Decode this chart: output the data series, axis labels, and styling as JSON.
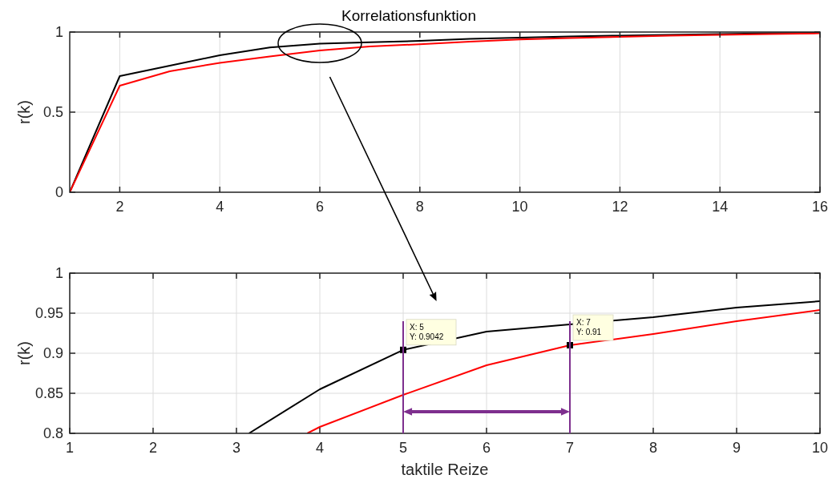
{
  "chart_data": [
    {
      "type": "line",
      "title": "Korrelationsfunktion",
      "ylabel": "r(k)",
      "x": [
        1,
        2,
        3,
        4,
        5,
        6,
        7,
        8,
        9,
        10,
        11,
        12,
        13,
        14,
        15,
        16
      ],
      "series": [
        {
          "color": "#000000",
          "values": [
            0,
            0.725,
            0.79,
            0.855,
            0.9042,
            0.927,
            0.936,
            0.945,
            0.957,
            0.965,
            0.972,
            0.978,
            0.983,
            0.988,
            0.992,
            0.995
          ]
        },
        {
          "color": "#ff0000",
          "values": [
            0,
            0.665,
            0.755,
            0.808,
            0.848,
            0.885,
            0.91,
            0.924,
            0.94,
            0.954,
            0.963,
            0.97,
            0.977,
            0.983,
            0.988,
            0.992
          ]
        }
      ],
      "xlim": [
        1,
        16
      ],
      "xticks": [
        2,
        4,
        6,
        8,
        10,
        12,
        14,
        16
      ],
      "ylim": [
        0,
        1
      ],
      "yticks": [
        0,
        0.5,
        1
      ],
      "grid": true
    },
    {
      "type": "line",
      "xlabel": "taktile Reize",
      "ylabel": "r(k)",
      "series": [
        {
          "color": "#000000",
          "x": [
            3.15,
            4,
            5,
            6,
            7,
            8,
            9,
            10
          ],
          "values": [
            0.8,
            0.855,
            0.9042,
            0.927,
            0.936,
            0.945,
            0.957,
            0.965
          ]
        },
        {
          "color": "#ff0000",
          "x": [
            3.85,
            4,
            5,
            6,
            7,
            8,
            9,
            10
          ],
          "values": [
            0.8,
            0.808,
            0.848,
            0.885,
            0.91,
            0.924,
            0.94,
            0.954
          ]
        }
      ],
      "xlim": [
        1,
        10
      ],
      "xticks": [
        1,
        2,
        3,
        4,
        5,
        6,
        7,
        8,
        9,
        10
      ],
      "ylim": [
        0.8,
        1
      ],
      "yticks": [
        0.8,
        0.85,
        0.9,
        0.95,
        1
      ],
      "grid": true,
      "annotations": [
        {
          "text": "X: 5\nY: 0.9042",
          "x": 5,
          "y": 0.9042
        },
        {
          "text": "X: 7\nY: 0.91",
          "x": 7,
          "y": 0.91
        }
      ]
    }
  ]
}
